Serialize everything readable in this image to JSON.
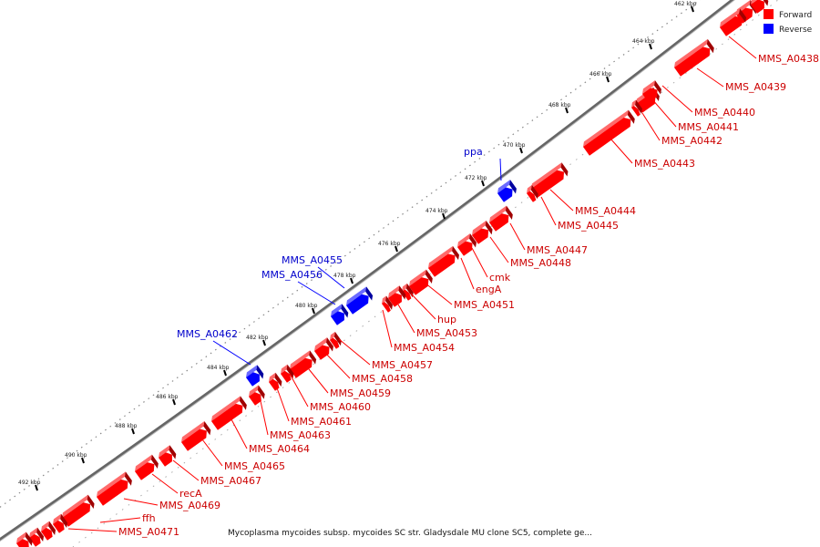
{
  "legend": {
    "forward_label": "Forward",
    "reverse_label": "Reverse",
    "forward_color": "#ff0000",
    "reverse_color": "#0000ff"
  },
  "caption": "Mycoplasma mycoides subsp. mycoides SC str. Gladysdale MU clone SC5, complete ge...",
  "ticks": [
    "462 kbp",
    "464 kbp",
    "466 kbp",
    "468 kbp",
    "470 kbp",
    "472 kbp",
    "474 kbp",
    "476 kbp",
    "478 kbp",
    "480 kbp",
    "482 kbp",
    "484 kbp",
    "486 kbp",
    "488 kbp",
    "490 kbp",
    "492 kbp"
  ],
  "genes": [
    {
      "name": "MMS_A0438",
      "strand": "forward"
    },
    {
      "name": "MMS_A0439",
      "strand": "forward"
    },
    {
      "name": "MMS_A0440",
      "strand": "forward"
    },
    {
      "name": "MMS_A0441",
      "strand": "forward"
    },
    {
      "name": "MMS_A0442",
      "strand": "forward"
    },
    {
      "name": "MMS_A0443",
      "strand": "forward"
    },
    {
      "name": "MMS_A0444",
      "strand": "forward"
    },
    {
      "name": "MMS_A0445",
      "strand": "forward"
    },
    {
      "name": "MMS_A0447",
      "strand": "forward"
    },
    {
      "name": "MMS_A0448",
      "strand": "forward"
    },
    {
      "name": "cmk",
      "strand": "forward"
    },
    {
      "name": "engA",
      "strand": "forward"
    },
    {
      "name": "MMS_A0451",
      "strand": "forward"
    },
    {
      "name": "hup",
      "strand": "forward"
    },
    {
      "name": "MMS_A0453",
      "strand": "forward"
    },
    {
      "name": "MMS_A0454",
      "strand": "forward"
    },
    {
      "name": "MMS_A0457",
      "strand": "forward"
    },
    {
      "name": "MMS_A0458",
      "strand": "forward"
    },
    {
      "name": "MMS_A0459",
      "strand": "forward"
    },
    {
      "name": "MMS_A0460",
      "strand": "forward"
    },
    {
      "name": "MMS_A0461",
      "strand": "forward"
    },
    {
      "name": "MMS_A0463",
      "strand": "forward"
    },
    {
      "name": "MMS_A0464",
      "strand": "forward"
    },
    {
      "name": "MMS_A0465",
      "strand": "forward"
    },
    {
      "name": "MMS_A0467",
      "strand": "forward"
    },
    {
      "name": "recA",
      "strand": "forward"
    },
    {
      "name": "MMS_A0469",
      "strand": "forward"
    },
    {
      "name": "ffh",
      "strand": "forward"
    },
    {
      "name": "MMS_A0471",
      "strand": "forward"
    },
    {
      "name": "ppa",
      "strand": "reverse"
    },
    {
      "name": "MMS_A0455",
      "strand": "reverse"
    },
    {
      "name": "MMS_A0456",
      "strand": "reverse"
    },
    {
      "name": "MMS_A0462",
      "strand": "reverse"
    }
  ]
}
